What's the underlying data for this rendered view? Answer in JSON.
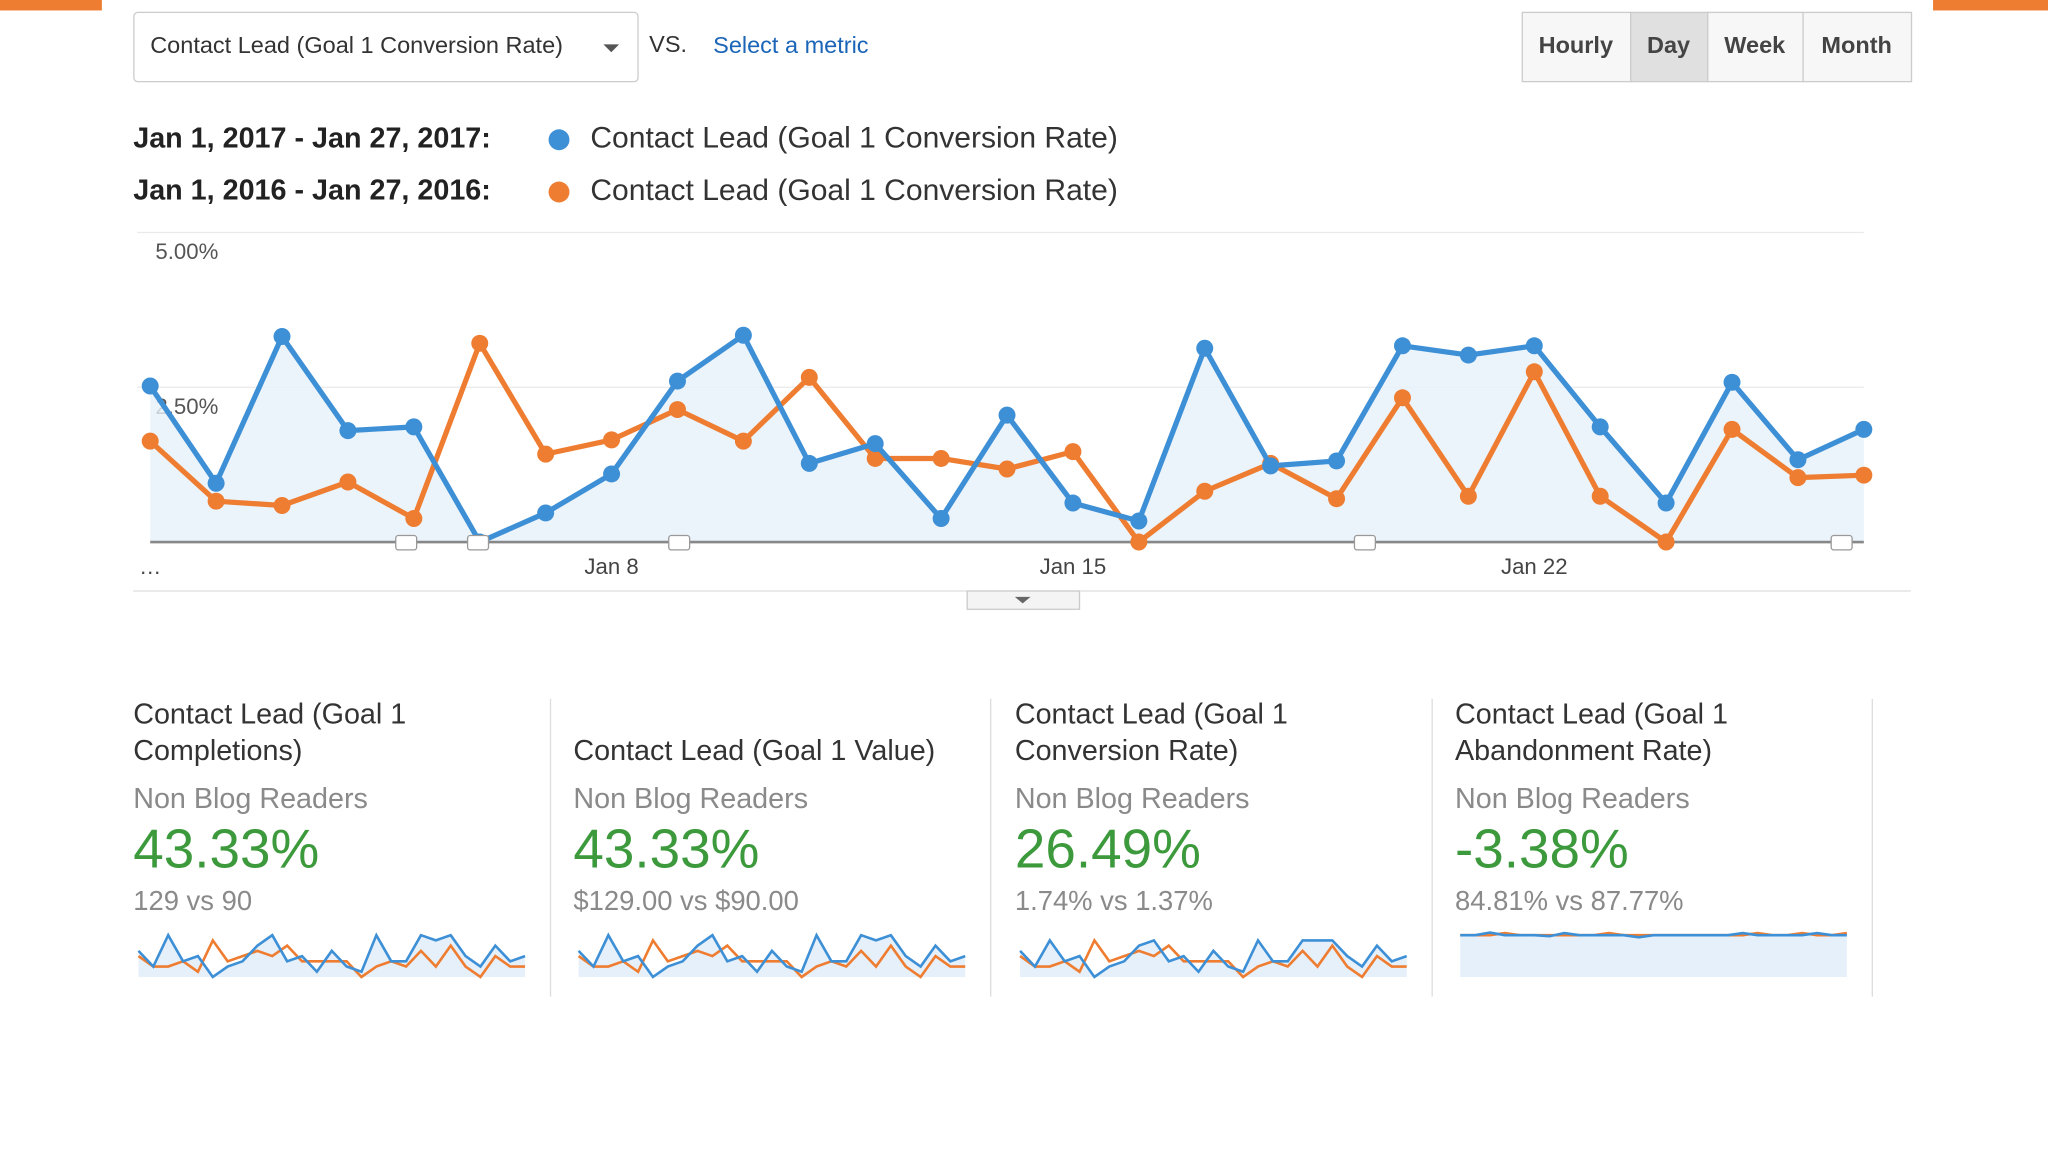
{
  "header": {
    "metric": "Contact Lead (Goal 1 Conversion Rate)",
    "vs": "VS.",
    "select": "Select a metric",
    "buttons": [
      "Hourly",
      "Day",
      "Week",
      "Month"
    ]
  },
  "chart_data": {
    "type": "line",
    "series": [
      {
        "range": "Jan 1, 2017 - Jan 27, 2017:",
        "name": "Contact Lead (Goal 1 Conversion Rate)",
        "color": "#3d8fd6",
        "values": [
          2.52,
          0.95,
          3.32,
          1.8,
          1.86,
          0,
          0.47,
          1.1,
          2.6,
          3.34,
          1.27,
          1.59,
          0.38,
          2.05,
          0.63,
          0.34,
          3.13,
          1.23,
          1.31,
          3.17,
          3.02,
          3.17,
          1.86,
          0.63,
          2.58,
          1.33,
          1.82
        ]
      },
      {
        "range": "Jan 1, 2016 - Jan 27, 2016:",
        "name": "Contact Lead (Goal 1 Conversion Rate)",
        "color": "#ee7d31",
        "values": [
          1.63,
          0.66,
          0.59,
          0.97,
          0.38,
          3.21,
          1.42,
          1.65,
          2.14,
          1.63,
          2.66,
          1.35,
          1.35,
          1.18,
          1.46,
          0,
          0.82,
          1.27,
          0.7,
          2.33,
          0.74,
          2.75,
          0.74,
          0,
          1.82,
          1.04,
          1.08
        ]
      }
    ],
    "categories": [
      "…",
      null,
      null,
      null,
      null,
      null,
      null,
      "Jan 8",
      null,
      null,
      null,
      null,
      null,
      null,
      "Jan 15",
      null,
      null,
      null,
      null,
      null,
      null,
      "Jan 22",
      null,
      null,
      null,
      null,
      null
    ],
    "ylim": [
      0,
      5
    ],
    "yticks": [
      {
        "value": 2.5,
        "label": "2.50%"
      },
      {
        "value": 5,
        "label": "5.00%"
      }
    ],
    "grid": true
  },
  "cards": [
    {
      "title_lines": [
        "Contact Lead (Goal 1",
        "Completions)"
      ],
      "segment": "Non Blog Readers",
      "change": "43.33%",
      "compare": "129 vs 90",
      "spark": [
        {
          "color": "#3d8fd6",
          "values": [
            5,
            2,
            8,
            3,
            4,
            0,
            2,
            3,
            6,
            8,
            3,
            4,
            1,
            5,
            2,
            1,
            8,
            3,
            3,
            8,
            7,
            8,
            4,
            2,
            6,
            3,
            4
          ]
        },
        {
          "color": "#ee7d31",
          "values": [
            4,
            2,
            2,
            3,
            1,
            7,
            3,
            4,
            5,
            4,
            6,
            3,
            3,
            3,
            3,
            0,
            2,
            3,
            2,
            5,
            2,
            6,
            2,
            0,
            4,
            2,
            2
          ]
        }
      ]
    },
    {
      "title_lines": [
        "Contact Lead (Goal 1 Value)"
      ],
      "segment": "Non Blog Readers",
      "change": "43.33%",
      "compare": "$129.00 vs $90.00",
      "spark": [
        {
          "color": "#3d8fd6",
          "values": [
            5,
            2,
            8,
            3,
            4,
            0,
            2,
            3,
            6,
            8,
            3,
            4,
            1,
            5,
            2,
            1,
            8,
            3,
            3,
            8,
            7,
            8,
            4,
            2,
            6,
            3,
            4
          ]
        },
        {
          "color": "#ee7d31",
          "values": [
            4,
            2,
            2,
            3,
            1,
            7,
            3,
            4,
            5,
            4,
            6,
            3,
            3,
            3,
            3,
            0,
            2,
            3,
            2,
            5,
            2,
            6,
            2,
            0,
            4,
            2,
            2
          ]
        }
      ]
    },
    {
      "title_lines": [
        "Contact Lead (Goal 1",
        "Conversion Rate)"
      ],
      "segment": "Non Blog Readers",
      "change": "26.49%",
      "compare": "1.74% vs 1.37%",
      "spark": [
        {
          "color": "#3d8fd6",
          "values": [
            5,
            2,
            7,
            3,
            4,
            0,
            2,
            3,
            6,
            7,
            3,
            4,
            1,
            5,
            2,
            1,
            7,
            3,
            3,
            7,
            7,
            7,
            4,
            2,
            6,
            3,
            4
          ]
        },
        {
          "color": "#ee7d31",
          "values": [
            4,
            2,
            2,
            3,
            1,
            7,
            3,
            4,
            5,
            4,
            6,
            3,
            3,
            3,
            3,
            0,
            2,
            3,
            2,
            5,
            2,
            6,
            2,
            0,
            4,
            2,
            2
          ]
        }
      ]
    },
    {
      "title_lines": [
        "Contact Lead (Goal 1",
        "Abandonment Rate)"
      ],
      "segment": "Non Blog Readers",
      "change": "-3.38%",
      "compare": "84.81% vs 87.77%",
      "spark": [
        {
          "color": "#3d8fd6",
          "values": [
            8,
            8,
            8.5,
            8,
            8,
            8,
            7.8,
            8.4,
            8,
            8,
            8,
            8,
            7.6,
            8,
            8,
            8,
            8,
            8,
            8,
            8.4,
            8,
            8,
            8,
            8,
            8.4,
            8,
            8
          ]
        },
        {
          "color": "#ee7d31",
          "values": [
            8,
            8,
            8,
            8.4,
            8,
            8,
            8,
            8,
            8,
            8,
            8.4,
            8,
            8,
            8,
            8,
            8,
            8,
            8,
            8,
            8,
            8.4,
            8,
            8,
            8.4,
            8,
            8,
            8.4
          ]
        }
      ]
    }
  ]
}
